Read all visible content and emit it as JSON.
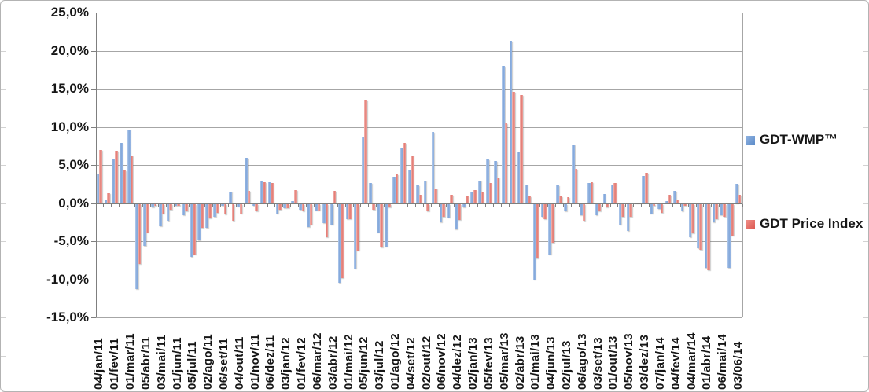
{
  "chart_data": {
    "type": "bar",
    "title": "",
    "grid": true,
    "legend_position": "right",
    "y_axis": {
      "min": -15,
      "max": 25,
      "step": 5,
      "tick_labels": [
        "25,0%",
        "20,0%",
        "15,0%",
        "10,0%",
        "5,0%",
        "0,0%",
        "-5,0%",
        "-10,0%",
        "-15,0%"
      ]
    },
    "categories": [
      "04/jan/11",
      "",
      "01/fev/11",
      "",
      "01/mar/11",
      "",
      "05/abr/11",
      "",
      "03/mai/11",
      "",
      "01/jun/11",
      "",
      "05/jul/11",
      "",
      "02/ago/11",
      "",
      "06/set/11",
      "",
      "04/out/11",
      "",
      "01/nov/11",
      "",
      "06/dez/11",
      "",
      "03/jan/12",
      "",
      "01/fev/12",
      "",
      "06/mar/12",
      "",
      "03/abr/12",
      "",
      "01/mai/12",
      "",
      "05/jun/12",
      "",
      "03/jul/12",
      "",
      "01/ago/12",
      "",
      "04/set/12",
      "",
      "02/out/12",
      "",
      "06/nov/12",
      "",
      "04/dez/12",
      "",
      "02/jan/13",
      "",
      "05/fev/13",
      "",
      "05/mar/13",
      "",
      "02/abr/13",
      "",
      "01/mai/13",
      "",
      "04/jun/13",
      "",
      "02/jul/13",
      "",
      "06/ago/13",
      "",
      "03/set/13",
      "",
      "01/out/13",
      "",
      "05/nov/13",
      "",
      "03/dez/13",
      "",
      "07/jan/14",
      "",
      "04/fev/14",
      "",
      "04/mar/14",
      "",
      "01/abr/14",
      "",
      "06/mai/14",
      "",
      "03/06/14"
    ],
    "series": [
      {
        "name": "GDT-WMP™",
        "color": "#7fa5d9",
        "values": [
          3.8,
          0.5,
          5.8,
          7.9,
          9.6,
          -11.2,
          -5.5,
          -0.5,
          -2.9,
          -2.2,
          -0.3,
          -1.5,
          -7.0,
          -4.8,
          -3.1,
          -1.7,
          -0.3,
          1.5,
          -0.4,
          5.9,
          -0.3,
          2.8,
          2.7,
          -1.3,
          -0.6,
          0.3,
          -0.8,
          -3.0,
          -0.9,
          -2.5,
          -2.7,
          -10.4,
          -2.0,
          -8.5,
          8.6,
          2.6,
          -3.8,
          -5.6,
          3.5,
          7.2,
          4.3,
          2.3,
          2.9,
          9.3,
          -2.4,
          -1.8,
          -3.4,
          -0.5,
          1.4,
          2.9,
          5.7,
          5.5,
          18.0,
          21.3,
          6.7,
          2.4,
          -9.9,
          -1.7,
          -6.6,
          2.3,
          -1.0,
          7.7,
          -1.5,
          2.6,
          -1.5,
          1.2,
          2.4,
          -2.7,
          -3.6,
          0.1,
          3.6,
          -1.3,
          -0.7,
          0.3,
          1.6,
          -1.0,
          -4.4,
          -5.8,
          -8.4,
          -2.4,
          -1.5,
          -8.4,
          2.5
        ]
      },
      {
        "name": "GDT Price Index",
        "color": "#e2766f",
        "values": [
          7.0,
          1.3,
          6.9,
          4.3,
          6.2,
          -7.9,
          -3.8,
          -0.3,
          -1.3,
          -0.8,
          -0.3,
          -1.0,
          -6.7,
          -3.1,
          -1.9,
          -1.2,
          -1.4,
          -2.2,
          -1.3,
          1.6,
          -1.0,
          2.7,
          2.6,
          -0.8,
          -0.6,
          1.7,
          -1.0,
          -2.7,
          -0.9,
          -4.4,
          1.6,
          -9.7,
          -2.0,
          -6.1,
          13.6,
          -0.8,
          -5.7,
          -0.5,
          3.8,
          7.9,
          6.2,
          1.1,
          -1.0,
          1.9,
          -1.7,
          1.1,
          -2.1,
          0.9,
          1.7,
          1.4,
          2.6,
          3.3,
          10.5,
          14.6,
          14.2,
          0.9,
          -7.2,
          -2.0,
          -5.1,
          0.9,
          0.8,
          4.5,
          -2.2,
          2.7,
          -1.0,
          -0.5,
          2.6,
          -1.7,
          -1.7,
          0.1,
          4.0,
          -0.3,
          -1.2,
          1.1,
          0.5,
          -0.3,
          -3.9,
          -6.0,
          -8.7,
          -2.0,
          -1.7,
          -4.2,
          1.1
        ]
      }
    ]
  }
}
